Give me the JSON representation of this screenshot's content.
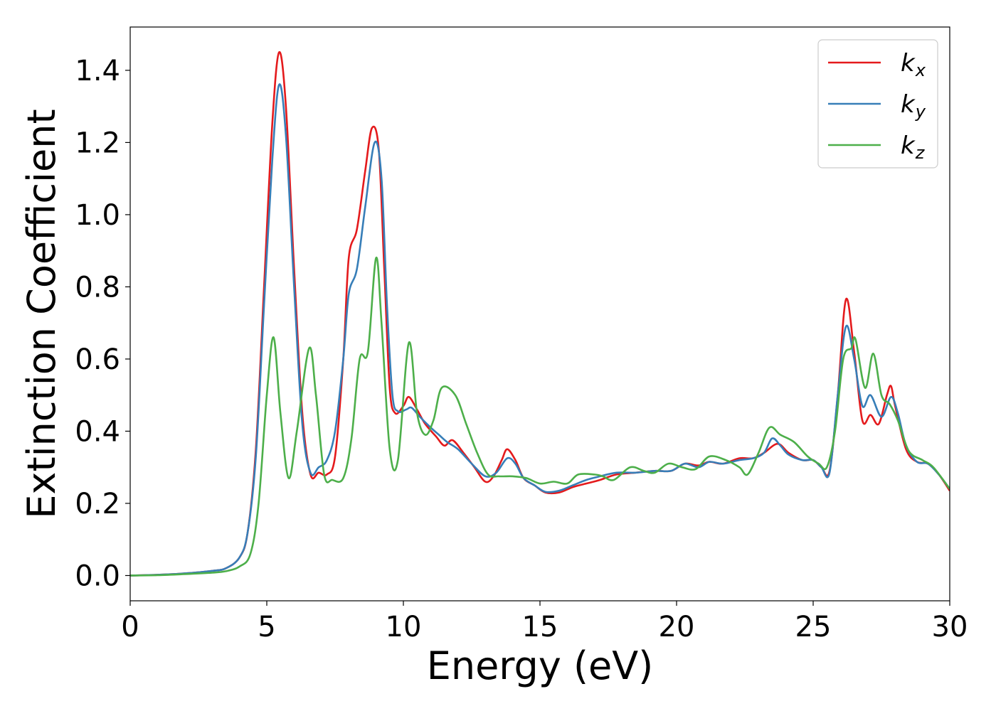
{
  "chart_data": {
    "type": "line",
    "title": "",
    "xlabel": "Energy (eV)",
    "ylabel": "Extinction Coefficient",
    "xlim": [
      0,
      30
    ],
    "ylim": [
      -0.07,
      1.52
    ],
    "xticks": [
      0,
      5,
      10,
      15,
      20,
      25,
      30
    ],
    "xtick_labels": [
      "0",
      "5",
      "10",
      "15",
      "20",
      "25",
      "30"
    ],
    "yticks": [
      0.0,
      0.2,
      0.4,
      0.6,
      0.8,
      1.0,
      1.2,
      1.4
    ],
    "ytick_labels": [
      "0.0",
      "0.2",
      "0.4",
      "0.6",
      "0.8",
      "1.0",
      "1.2",
      "1.4"
    ],
    "grid": false,
    "legend_position": "top-right",
    "series": [
      {
        "name": "k",
        "subscript": "x",
        "color": "#e41a1c",
        "points": [
          [
            0,
            0.0
          ],
          [
            1,
            0.002
          ],
          [
            2,
            0.006
          ],
          [
            3,
            0.013
          ],
          [
            3.5,
            0.02
          ],
          [
            4,
            0.05
          ],
          [
            4.3,
            0.12
          ],
          [
            4.6,
            0.35
          ],
          [
            4.9,
            0.8
          ],
          [
            5.2,
            1.25
          ],
          [
            5.45,
            1.45
          ],
          [
            5.7,
            1.3
          ],
          [
            6.0,
            0.85
          ],
          [
            6.3,
            0.45
          ],
          [
            6.6,
            0.28
          ],
          [
            6.9,
            0.285
          ],
          [
            7.2,
            0.28
          ],
          [
            7.5,
            0.33
          ],
          [
            7.8,
            0.6
          ],
          [
            8.0,
            0.88
          ],
          [
            8.3,
            0.96
          ],
          [
            8.6,
            1.12
          ],
          [
            8.85,
            1.24
          ],
          [
            9.1,
            1.18
          ],
          [
            9.3,
            0.85
          ],
          [
            9.5,
            0.52
          ],
          [
            9.7,
            0.45
          ],
          [
            10.0,
            0.47
          ],
          [
            10.2,
            0.495
          ],
          [
            10.5,
            0.46
          ],
          [
            10.8,
            0.42
          ],
          [
            11.2,
            0.385
          ],
          [
            11.5,
            0.36
          ],
          [
            11.8,
            0.375
          ],
          [
            12.2,
            0.34
          ],
          [
            12.6,
            0.3
          ],
          [
            13.0,
            0.26
          ],
          [
            13.3,
            0.275
          ],
          [
            13.6,
            0.32
          ],
          [
            13.8,
            0.35
          ],
          [
            14.1,
            0.32
          ],
          [
            14.4,
            0.27
          ],
          [
            14.8,
            0.25
          ],
          [
            15.2,
            0.23
          ],
          [
            15.7,
            0.23
          ],
          [
            16.2,
            0.245
          ],
          [
            16.7,
            0.255
          ],
          [
            17.2,
            0.265
          ],
          [
            17.8,
            0.28
          ],
          [
            18.5,
            0.285
          ],
          [
            19.2,
            0.29
          ],
          [
            19.8,
            0.29
          ],
          [
            20.3,
            0.31
          ],
          [
            20.8,
            0.305
          ],
          [
            21.2,
            0.315
          ],
          [
            21.7,
            0.31
          ],
          [
            22.3,
            0.325
          ],
          [
            22.8,
            0.325
          ],
          [
            23.2,
            0.34
          ],
          [
            23.7,
            0.365
          ],
          [
            24.1,
            0.34
          ],
          [
            24.6,
            0.32
          ],
          [
            25.0,
            0.32
          ],
          [
            25.3,
            0.3
          ],
          [
            25.6,
            0.29
          ],
          [
            25.9,
            0.5
          ],
          [
            26.2,
            0.765
          ],
          [
            26.5,
            0.62
          ],
          [
            26.8,
            0.43
          ],
          [
            27.1,
            0.445
          ],
          [
            27.4,
            0.42
          ],
          [
            27.7,
            0.5
          ],
          [
            27.85,
            0.525
          ],
          [
            28.0,
            0.47
          ],
          [
            28.4,
            0.35
          ],
          [
            28.8,
            0.315
          ],
          [
            29.2,
            0.31
          ],
          [
            29.6,
            0.28
          ],
          [
            30,
            0.235
          ]
        ]
      },
      {
        "name": "k",
        "subscript": "y",
        "color": "#377eb8",
        "points": [
          [
            0,
            0.0
          ],
          [
            1,
            0.002
          ],
          [
            2,
            0.006
          ],
          [
            3,
            0.013
          ],
          [
            3.5,
            0.02
          ],
          [
            4,
            0.05
          ],
          [
            4.3,
            0.12
          ],
          [
            4.6,
            0.33
          ],
          [
            4.9,
            0.75
          ],
          [
            5.2,
            1.15
          ],
          [
            5.45,
            1.36
          ],
          [
            5.7,
            1.22
          ],
          [
            6.0,
            0.8
          ],
          [
            6.3,
            0.42
          ],
          [
            6.6,
            0.285
          ],
          [
            6.9,
            0.3
          ],
          [
            7.2,
            0.32
          ],
          [
            7.5,
            0.4
          ],
          [
            7.8,
            0.6
          ],
          [
            8.0,
            0.78
          ],
          [
            8.3,
            0.85
          ],
          [
            8.6,
            1.02
          ],
          [
            8.95,
            1.2
          ],
          [
            9.2,
            1.1
          ],
          [
            9.4,
            0.75
          ],
          [
            9.6,
            0.5
          ],
          [
            9.8,
            0.455
          ],
          [
            10.1,
            0.46
          ],
          [
            10.3,
            0.465
          ],
          [
            10.6,
            0.44
          ],
          [
            11.0,
            0.41
          ],
          [
            11.3,
            0.39
          ],
          [
            11.6,
            0.37
          ],
          [
            12.0,
            0.35
          ],
          [
            12.5,
            0.31
          ],
          [
            13.0,
            0.275
          ],
          [
            13.4,
            0.285
          ],
          [
            13.8,
            0.325
          ],
          [
            14.1,
            0.31
          ],
          [
            14.4,
            0.27
          ],
          [
            14.8,
            0.25
          ],
          [
            15.2,
            0.232
          ],
          [
            15.7,
            0.235
          ],
          [
            16.2,
            0.25
          ],
          [
            16.7,
            0.265
          ],
          [
            17.2,
            0.275
          ],
          [
            17.8,
            0.285
          ],
          [
            18.5,
            0.285
          ],
          [
            19.2,
            0.29
          ],
          [
            19.8,
            0.29
          ],
          [
            20.3,
            0.31
          ],
          [
            20.8,
            0.3
          ],
          [
            21.2,
            0.315
          ],
          [
            21.7,
            0.31
          ],
          [
            22.3,
            0.32
          ],
          [
            22.8,
            0.325
          ],
          [
            23.2,
            0.34
          ],
          [
            23.5,
            0.38
          ],
          [
            23.8,
            0.36
          ],
          [
            24.1,
            0.335
          ],
          [
            24.6,
            0.32
          ],
          [
            25.0,
            0.32
          ],
          [
            25.3,
            0.3
          ],
          [
            25.6,
            0.285
          ],
          [
            25.9,
            0.5
          ],
          [
            26.2,
            0.69
          ],
          [
            26.5,
            0.6
          ],
          [
            26.8,
            0.47
          ],
          [
            27.1,
            0.5
          ],
          [
            27.5,
            0.44
          ],
          [
            27.85,
            0.495
          ],
          [
            28.1,
            0.45
          ],
          [
            28.4,
            0.36
          ],
          [
            28.8,
            0.315
          ],
          [
            29.2,
            0.31
          ],
          [
            29.6,
            0.28
          ],
          [
            30,
            0.24
          ]
        ]
      },
      {
        "name": "k",
        "subscript": "z",
        "color": "#4daf4a",
        "points": [
          [
            0,
            0.0
          ],
          [
            1,
            0.001
          ],
          [
            2,
            0.004
          ],
          [
            3,
            0.008
          ],
          [
            3.5,
            0.012
          ],
          [
            4,
            0.025
          ],
          [
            4.4,
            0.06
          ],
          [
            4.7,
            0.2
          ],
          [
            5.0,
            0.5
          ],
          [
            5.25,
            0.66
          ],
          [
            5.5,
            0.45
          ],
          [
            5.8,
            0.27
          ],
          [
            6.1,
            0.4
          ],
          [
            6.55,
            0.63
          ],
          [
            6.8,
            0.5
          ],
          [
            7.1,
            0.28
          ],
          [
            7.4,
            0.265
          ],
          [
            7.8,
            0.27
          ],
          [
            8.1,
            0.38
          ],
          [
            8.4,
            0.6
          ],
          [
            8.7,
            0.62
          ],
          [
            9.0,
            0.88
          ],
          [
            9.2,
            0.7
          ],
          [
            9.5,
            0.35
          ],
          [
            9.8,
            0.32
          ],
          [
            10.2,
            0.645
          ],
          [
            10.5,
            0.45
          ],
          [
            10.8,
            0.39
          ],
          [
            11.1,
            0.43
          ],
          [
            11.4,
            0.52
          ],
          [
            11.9,
            0.5
          ],
          [
            12.3,
            0.42
          ],
          [
            12.7,
            0.34
          ],
          [
            13.1,
            0.28
          ],
          [
            13.5,
            0.275
          ],
          [
            14.0,
            0.275
          ],
          [
            14.5,
            0.27
          ],
          [
            15.0,
            0.255
          ],
          [
            15.5,
            0.26
          ],
          [
            16.0,
            0.255
          ],
          [
            16.4,
            0.28
          ],
          [
            17.0,
            0.28
          ],
          [
            17.3,
            0.275
          ],
          [
            17.7,
            0.265
          ],
          [
            18.3,
            0.3
          ],
          [
            18.8,
            0.29
          ],
          [
            19.2,
            0.285
          ],
          [
            19.7,
            0.31
          ],
          [
            20.2,
            0.3
          ],
          [
            20.7,
            0.295
          ],
          [
            21.2,
            0.33
          ],
          [
            21.8,
            0.32
          ],
          [
            22.3,
            0.3
          ],
          [
            22.6,
            0.28
          ],
          [
            23.0,
            0.34
          ],
          [
            23.4,
            0.41
          ],
          [
            23.8,
            0.39
          ],
          [
            24.3,
            0.37
          ],
          [
            24.8,
            0.33
          ],
          [
            25.2,
            0.31
          ],
          [
            25.5,
            0.3
          ],
          [
            25.8,
            0.4
          ],
          [
            26.1,
            0.6
          ],
          [
            26.4,
            0.63
          ],
          [
            26.55,
            0.655
          ],
          [
            26.9,
            0.52
          ],
          [
            27.2,
            0.615
          ],
          [
            27.5,
            0.5
          ],
          [
            27.8,
            0.475
          ],
          [
            28.1,
            0.43
          ],
          [
            28.5,
            0.345
          ],
          [
            29.0,
            0.32
          ],
          [
            29.4,
            0.3
          ],
          [
            30,
            0.24
          ]
        ]
      }
    ]
  }
}
